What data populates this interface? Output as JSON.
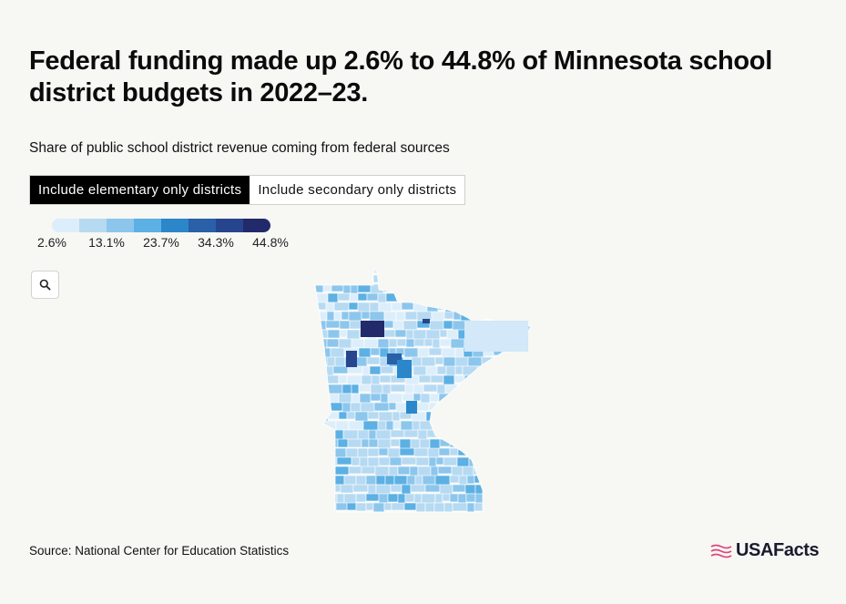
{
  "header": {
    "title": "Federal funding made up 2.6% to 44.8% of Minnesota school district budgets in 2022–23.",
    "subtitle": "Share of public school district revenue coming from federal sources"
  },
  "toggle": {
    "options": [
      {
        "label": "Include elementary only districts",
        "active": true
      },
      {
        "label": "Include secondary only districts",
        "active": false
      }
    ]
  },
  "legend": {
    "colors": [
      "#ddeefb",
      "#b6daf2",
      "#8cc6ec",
      "#5cb0e3",
      "#2b87c9",
      "#2960a8",
      "#27458e",
      "#232a6b"
    ],
    "labels": [
      "2.6%",
      "13.1%",
      "23.7%",
      "34.3%",
      "44.8%"
    ]
  },
  "zoom_icon": "search-icon",
  "footer": {
    "source": "Source: National Center for Education Statistics",
    "logo_text": "USAFacts",
    "logo_icon": "usafacts-flag-icon"
  }
}
